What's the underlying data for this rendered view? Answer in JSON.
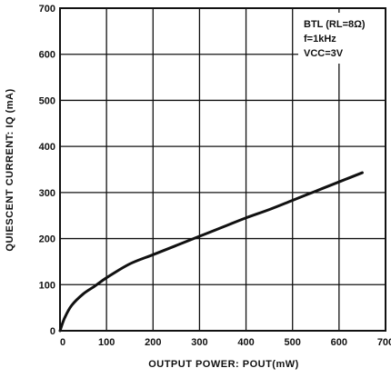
{
  "chart_data": {
    "type": "line",
    "xlabel": "OUTPUT POWER: POUT(mW)",
    "ylabel": "QUIESCENT CURRENT: IQ (mA)",
    "xlim": [
      0,
      700
    ],
    "ylim": [
      0,
      700
    ],
    "x_ticks": [
      "0",
      "100",
      "200",
      "300",
      "400",
      "500",
      "600",
      "700"
    ],
    "y_ticks": [
      "0",
      "100",
      "200",
      "300",
      "400",
      "500",
      "600",
      "700"
    ],
    "grid": true,
    "annotations": [
      "BTL (RL=8Ω)",
      "f=1kHz",
      "VCC=3V"
    ],
    "series": [
      {
        "x": [
          0,
          10,
          25,
          50,
          75,
          100,
          150,
          200,
          250,
          300,
          350,
          400,
          450,
          500,
          550,
          600,
          650
        ],
        "y": [
          0,
          28,
          55,
          80,
          97,
          115,
          145,
          165,
          185,
          205,
          225,
          245,
          263,
          283,
          303,
          323,
          343
        ]
      }
    ]
  }
}
